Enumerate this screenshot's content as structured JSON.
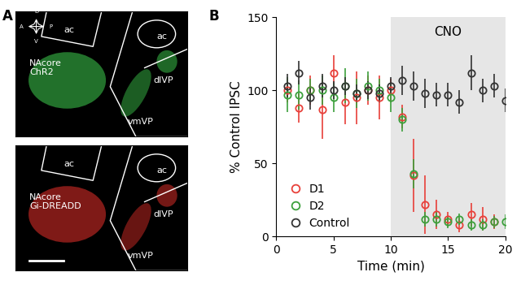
{
  "panel_labels": [
    "A",
    "B"
  ],
  "images": [
    {
      "labels": [
        "ac",
        "ac",
        "NAcore\nChR2",
        "dlVP",
        "vmVP"
      ],
      "compass": [
        "D",
        "V",
        "A",
        "P"
      ]
    },
    {
      "labels": [
        "ac",
        "ac",
        "NAcore\nGi-DREADD",
        "dlVP",
        "vmVP"
      ]
    }
  ],
  "chart_data": {
    "type": "line",
    "x_label": "Time (min)",
    "y_label": "% Control IPSC",
    "x": [
      1,
      2,
      3,
      4,
      5,
      6,
      7,
      8,
      9,
      10,
      11,
      12,
      13,
      14,
      15,
      16,
      17,
      18,
      19,
      20
    ],
    "series": [
      {
        "name": "D1",
        "color": "#e8403a",
        "marker": "circle",
        "values": [
          100,
          88,
          100,
          87,
          112,
          92,
          95,
          100,
          95,
          100,
          82,
          42,
          22,
          15,
          12,
          8,
          15,
          12,
          10,
          null
        ],
        "errors": [
          8,
          10,
          10,
          20,
          12,
          15,
          18,
          10,
          15,
          8,
          8,
          25,
          20,
          10,
          5,
          5,
          8,
          8,
          5,
          null
        ]
      },
      {
        "name": "D2",
        "color": "#3ca03c",
        "marker": "circle",
        "values": [
          97,
          97,
          100,
          100,
          95,
          103,
          98,
          103,
          100,
          95,
          80,
          43,
          12,
          12,
          10,
          12,
          8,
          8,
          10,
          10
        ],
        "errors": [
          12,
          10,
          8,
          10,
          10,
          12,
          10,
          10,
          8,
          10,
          8,
          10,
          5,
          5,
          4,
          4,
          4,
          4,
          4,
          5
        ]
      },
      {
        "name": "Control",
        "color": "#333333",
        "marker": "circle",
        "values": [
          103,
          112,
          95,
          103,
          100,
          103,
          98,
          100,
          98,
          103,
          107,
          103,
          98,
          97,
          97,
          92,
          112,
          100,
          103,
          93
        ],
        "errors": [
          8,
          8,
          8,
          8,
          6,
          6,
          6,
          6,
          6,
          6,
          10,
          10,
          10,
          8,
          8,
          8,
          12,
          8,
          8,
          8
        ]
      }
    ],
    "shaded_region": {
      "x": [
        10,
        20
      ],
      "label": "CNO"
    },
    "xlim": [
      0,
      20
    ],
    "xticks": [
      0,
      5,
      10,
      15,
      20
    ],
    "ylim": [
      0,
      150
    ],
    "yticks": [
      0,
      50,
      100,
      150
    ],
    "legend": "lower left"
  }
}
